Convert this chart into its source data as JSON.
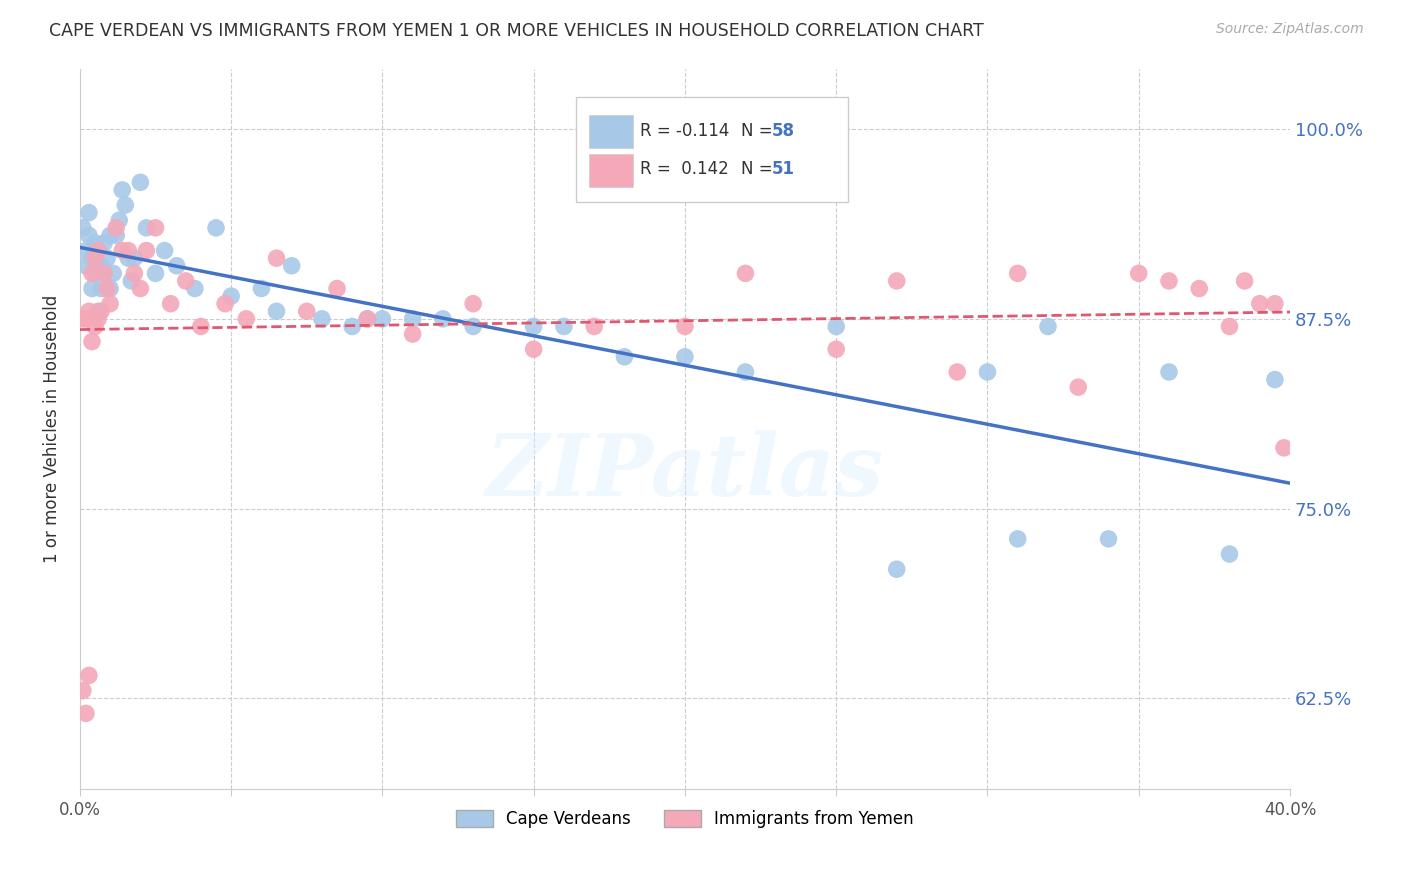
{
  "title": "CAPE VERDEAN VS IMMIGRANTS FROM YEMEN 1 OR MORE VEHICLES IN HOUSEHOLD CORRELATION CHART",
  "source": "Source: ZipAtlas.com",
  "ylabel": "1 or more Vehicles in Household",
  "yticks": [
    "62.5%",
    "75.0%",
    "87.5%",
    "100.0%"
  ],
  "ytick_vals": [
    0.625,
    0.75,
    0.875,
    1.0
  ],
  "xmin": 0.0,
  "xmax": 0.4,
  "ymin": 0.565,
  "ymax": 1.04,
  "blue_color": "#a8c8e8",
  "pink_color": "#f4a8b8",
  "trendline_blue": "#4472c4",
  "trendline_pink": "#e05870",
  "watermark_text": "ZIPatlas",
  "label_blue": "Cape Verdeans",
  "label_pink": "Immigrants from Yemen",
  "blue_scatter_x": [
    0.001,
    0.002,
    0.002,
    0.003,
    0.003,
    0.004,
    0.004,
    0.005,
    0.005,
    0.006,
    0.006,
    0.007,
    0.007,
    0.008,
    0.008,
    0.009,
    0.01,
    0.01,
    0.011,
    0.012,
    0.013,
    0.014,
    0.015,
    0.016,
    0.017,
    0.018,
    0.02,
    0.022,
    0.025,
    0.028,
    0.032,
    0.038,
    0.045,
    0.05,
    0.06,
    0.065,
    0.07,
    0.08,
    0.09,
    0.095,
    0.1,
    0.11,
    0.12,
    0.13,
    0.15,
    0.16,
    0.18,
    0.2,
    0.22,
    0.25,
    0.27,
    0.3,
    0.31,
    0.32,
    0.34,
    0.36,
    0.38,
    0.395
  ],
  "blue_scatter_y": [
    0.935,
    0.92,
    0.91,
    0.93,
    0.945,
    0.915,
    0.895,
    0.925,
    0.905,
    0.92,
    0.88,
    0.91,
    0.895,
    0.925,
    0.905,
    0.915,
    0.93,
    0.895,
    0.905,
    0.93,
    0.94,
    0.96,
    0.95,
    0.915,
    0.9,
    0.915,
    0.965,
    0.935,
    0.905,
    0.92,
    0.91,
    0.895,
    0.935,
    0.89,
    0.895,
    0.88,
    0.91,
    0.875,
    0.87,
    0.875,
    0.875,
    0.875,
    0.875,
    0.87,
    0.87,
    0.87,
    0.85,
    0.85,
    0.84,
    0.87,
    0.71,
    0.84,
    0.73,
    0.87,
    0.73,
    0.84,
    0.72,
    0.835
  ],
  "pink_scatter_x": [
    0.001,
    0.001,
    0.002,
    0.002,
    0.003,
    0.003,
    0.004,
    0.004,
    0.005,
    0.005,
    0.006,
    0.006,
    0.007,
    0.008,
    0.009,
    0.01,
    0.012,
    0.014,
    0.016,
    0.018,
    0.02,
    0.022,
    0.025,
    0.03,
    0.035,
    0.04,
    0.048,
    0.055,
    0.065,
    0.075,
    0.085,
    0.095,
    0.11,
    0.13,
    0.15,
    0.17,
    0.2,
    0.22,
    0.25,
    0.27,
    0.29,
    0.31,
    0.33,
    0.35,
    0.36,
    0.37,
    0.38,
    0.385,
    0.39,
    0.395,
    0.398
  ],
  "pink_scatter_y": [
    0.63,
    0.875,
    0.615,
    0.875,
    0.64,
    0.88,
    0.86,
    0.905,
    0.87,
    0.915,
    0.875,
    0.92,
    0.88,
    0.905,
    0.895,
    0.885,
    0.935,
    0.92,
    0.92,
    0.905,
    0.895,
    0.92,
    0.935,
    0.885,
    0.9,
    0.87,
    0.885,
    0.875,
    0.915,
    0.88,
    0.895,
    0.875,
    0.865,
    0.885,
    0.855,
    0.87,
    0.87,
    0.905,
    0.855,
    0.9,
    0.84,
    0.905,
    0.83,
    0.905,
    0.9,
    0.895,
    0.87,
    0.9,
    0.885,
    0.885,
    0.79
  ]
}
